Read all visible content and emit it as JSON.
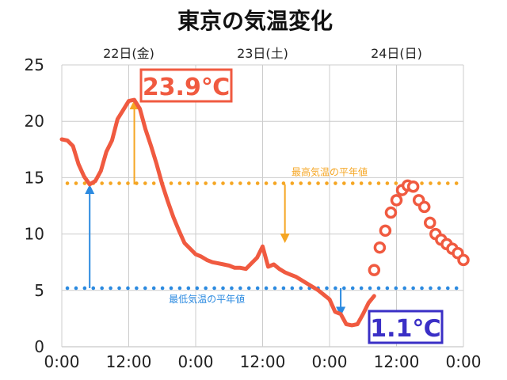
{
  "chart_data": {
    "type": "line",
    "title": "東京の気温変化",
    "x_tick_labels": [
      "0:00",
      "12:00",
      "0:00",
      "12:00",
      "0:00",
      "12:00",
      "0:00"
    ],
    "x_tick_hours": [
      0,
      12,
      24,
      36,
      48,
      60,
      72
    ],
    "day_labels": [
      {
        "label": "22日(金)",
        "hour": 12
      },
      {
        "label": "23日(土)",
        "hour": 36
      },
      {
        "label": "24日(日)",
        "hour": 60
      }
    ],
    "y_ticks": [
      0,
      5,
      10,
      15,
      20,
      25
    ],
    "xlim": [
      0,
      72
    ],
    "ylim": [
      0,
      25
    ],
    "grid": true,
    "series": [
      {
        "style": "line",
        "color": "#f05a40",
        "x": [
          0,
          1,
          2,
          3,
          4,
          5,
          6,
          7,
          8,
          9,
          10,
          11,
          12,
          13,
          14,
          15,
          16,
          17,
          18,
          19,
          20,
          21,
          22,
          23,
          24,
          25,
          26,
          27,
          28,
          29,
          30,
          31,
          32,
          33,
          34,
          35,
          36,
          37,
          38,
          39,
          40,
          41,
          42,
          43,
          44,
          45,
          46,
          47,
          48,
          49,
          50,
          51,
          52,
          53,
          54,
          55,
          56
        ],
        "y": [
          18.4,
          18.3,
          17.8,
          16.2,
          15.1,
          14.4,
          14.7,
          15.6,
          17.3,
          18.3,
          20.2,
          21.0,
          21.8,
          21.9,
          21.1,
          19.3,
          17.8,
          16.2,
          14.4,
          12.9,
          11.5,
          10.3,
          9.2,
          8.7,
          8.2,
          8.0,
          7.7,
          7.5,
          7.4,
          7.3,
          7.2,
          7.0,
          7.0,
          6.9,
          7.4,
          7.9,
          8.9,
          7.1,
          7.3,
          6.9,
          6.6,
          6.4,
          6.2,
          5.9,
          5.6,
          5.3,
          5.0,
          4.6,
          4.2,
          3.1,
          2.9,
          2.0,
          1.9,
          2.0,
          2.9,
          3.9,
          4.5
        ]
      },
      {
        "style": "markers",
        "color": "#f05a40",
        "x": [
          56,
          57,
          58,
          59,
          60,
          61,
          62,
          63,
          64,
          65,
          66,
          67,
          68,
          69,
          70,
          71,
          72
        ],
        "y": [
          6.8,
          8.8,
          10.3,
          11.9,
          13.0,
          13.9,
          14.3,
          14.2,
          13.0,
          12.4,
          11.0,
          10.0,
          9.5,
          9.1,
          8.7,
          8.3,
          7.7
        ]
      }
    ],
    "reference_lines": [
      {
        "label": "最高気温の平年値",
        "value": 14.5,
        "color": "#f5a623"
      },
      {
        "label": "最低気温の平年値",
        "value": 5.2,
        "color": "#2b8ae0"
      }
    ],
    "callouts": [
      {
        "text": "23.9℃",
        "color": "#f05a40"
      },
      {
        "text": "1.1℃",
        "color": "#3a2fc6"
      }
    ],
    "arrows": [
      {
        "color": "#2b8ae0",
        "x": 5,
        "from": 5.2,
        "to": 14.4
      },
      {
        "color": "#f5a623",
        "x": 13,
        "from": 14.4,
        "to": 21.9
      },
      {
        "color": "#f5a623",
        "x": 40,
        "from": 14.4,
        "to": 9.2
      },
      {
        "color": "#2b8ae0",
        "x": 50,
        "from": 5.2,
        "to": 2.7
      }
    ]
  }
}
